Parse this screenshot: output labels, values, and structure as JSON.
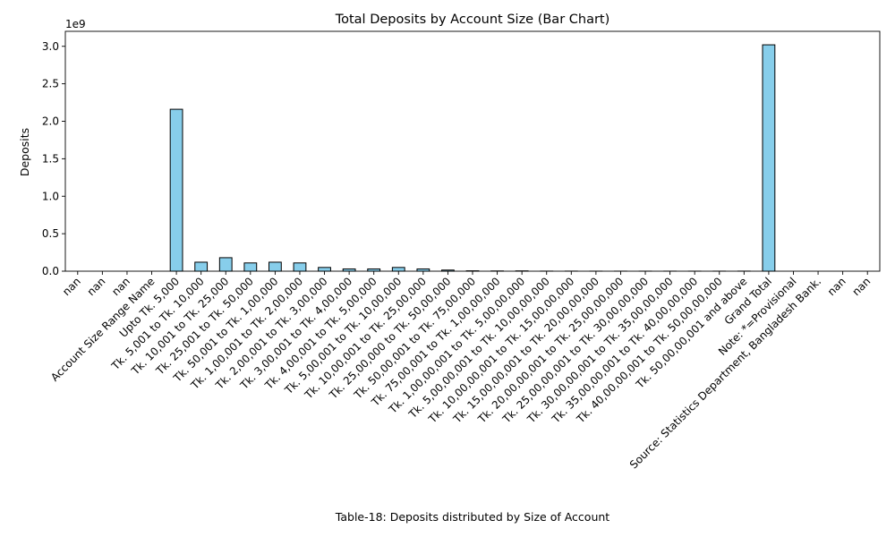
{
  "chart_data": {
    "type": "bar",
    "title": "Total Deposits by Account Size (Bar Chart)",
    "xlabel": "Table-18:  Deposits  distributed by Size of Account",
    "ylabel": "Deposits",
    "y_multiplier_label": "1e9",
    "y_scale": 1000000000,
    "ylim": [
      0,
      3.2
    ],
    "yticks": [
      0.0,
      0.5,
      1.0,
      1.5,
      2.0,
      2.5,
      3.0
    ],
    "ytick_labels": [
      "0.0",
      "0.5",
      "1.0",
      "1.5",
      "2.0",
      "2.5",
      "3.0"
    ],
    "grid": false,
    "bar_color": "#87ceeb",
    "bar_edge_color": "#000000",
    "categories": [
      "nan",
      "nan",
      "nan",
      "Account Size Range Name",
      "Upto Tk. 5,000",
      "Tk. 5,001 to Tk. 10,000",
      "Tk. 10,001 to Tk. 25,000",
      "Tk. 25,001 to Tk. 50,000",
      "Tk. 50,001 to Tk. 1,00,000",
      "Tk. 1,00,001 to Tk. 2,00,000",
      "Tk. 2,00,001 to Tk. 3,00,000",
      "Tk. 3,00,001 to Tk. 4,00,000",
      "Tk. 4,00,001 to Tk. 5,00,000",
      "Tk. 5,00,001 to Tk. 10,00,000",
      "Tk. 10,00,001 to Tk. 25,00,000",
      "Tk. 25,00,000 to Tk. 50,00,000",
      "Tk. 50,00,001 to Tk. 75,00,000",
      "Tk. 75,00,001 to Tk. 1,00,00,000",
      "Tk. 1,00,00,001 to Tk. 5,00,00,000",
      "Tk. 5,00,00,001 to Tk. 10,00,00,000",
      "Tk. 10,00,00,001 to Tk. 15,00,00,000",
      "Tk. 15,00,00,001 to Tk. 20,00,00,000",
      "Tk. 20,00,00,001 to Tk. 25,00,00,000",
      "Tk. 25,00,00,001 to Tk. 30,00,00,000",
      "Tk. 30,00,00,001 to Tk. 35,00,00,000",
      "Tk. 35,00,00,001 to Tk. 40,00,00,000",
      "Tk. 40,00,00,001 to Tk. 50,00,00,000",
      "Tk. 50,00,00,001 and above",
      "Grand Total",
      "Note: *=Provisional",
      "Source: Statistics Department, Bangladesh Bank.",
      "nan",
      "nan"
    ],
    "values": [
      0,
      0,
      0,
      0,
      2.16,
      0.12,
      0.18,
      0.11,
      0.12,
      0.11,
      0.05,
      0.03,
      0.03,
      0.05,
      0.03,
      0.015,
      0.005,
      0.003,
      0.004,
      0.001,
      0.001,
      0.0005,
      0.0005,
      0.0005,
      0.0005,
      0.0005,
      0.0005,
      0.001,
      3.02,
      0,
      0,
      0,
      0
    ]
  }
}
